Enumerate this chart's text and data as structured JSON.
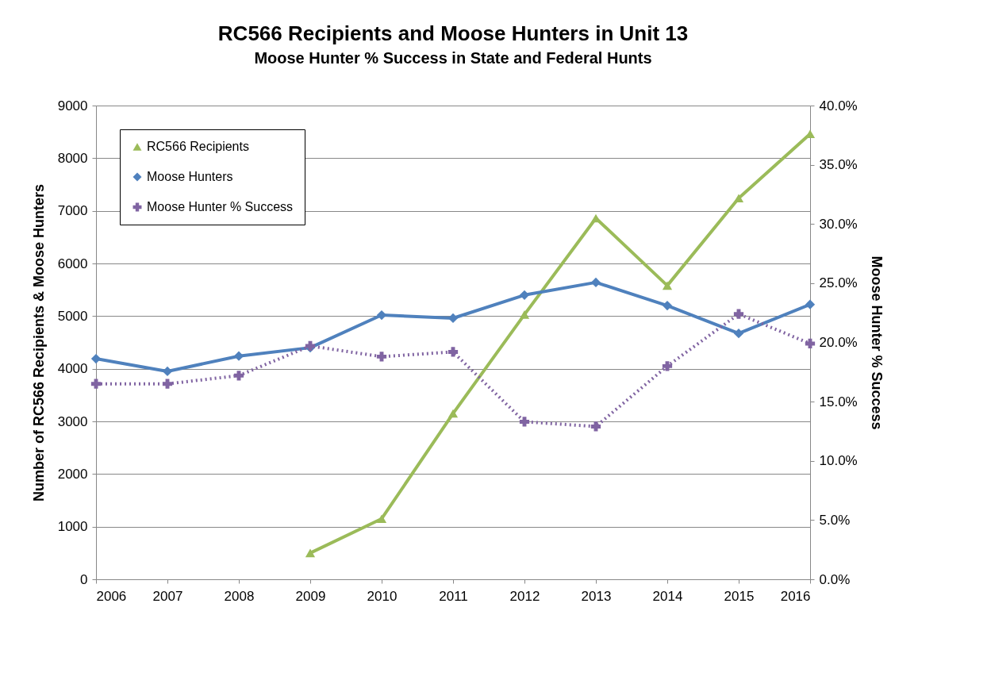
{
  "chart_data": {
    "type": "line",
    "title": "RC566 Recipients and Moose Hunters in Unit 13",
    "subtitle": "Moose Hunter % Success in State and Federal Hunts",
    "ylabel": "Number of RC566 Recipients & Moose Hunters",
    "y2label": "Moose Hunter % Success",
    "x": [
      2006,
      2007,
      2008,
      2009,
      2010,
      2011,
      2012,
      2013,
      2014,
      2015,
      2016
    ],
    "xlim": [
      2006,
      2016
    ],
    "xticks": [
      2006,
      2007,
      2008,
      2009,
      2010,
      2011,
      2012,
      2013,
      2014,
      2015,
      2016
    ],
    "ylim": [
      0,
      9000
    ],
    "yticks": [
      0,
      1000,
      2000,
      3000,
      4000,
      5000,
      6000,
      7000,
      8000,
      9000
    ],
    "y2lim": [
      0,
      40
    ],
    "y2ticks": [
      {
        "value": 0,
        "label": "0.0%"
      },
      {
        "value": 5,
        "label": "5.0%"
      },
      {
        "value": 10,
        "label": "10.0%"
      },
      {
        "value": 15,
        "label": "15.0%"
      },
      {
        "value": 20,
        "label": "20.0%"
      },
      {
        "value": 25,
        "label": "25.0%"
      },
      {
        "value": 30,
        "label": "30.0%"
      },
      {
        "value": 35,
        "label": "35.0%"
      },
      {
        "value": 40,
        "label": "40.0%"
      }
    ],
    "grid": "y",
    "legend": "top left",
    "series": [
      {
        "name": "RC566 Recipients",
        "color": "#9bbb59",
        "marker": "triangle",
        "line_style": "solid",
        "values": [
          null,
          null,
          null,
          500,
          1150,
          3150,
          5030,
          6860,
          5580,
          7240,
          8460
        ]
      },
      {
        "name": "Moose Hunters",
        "color": "#4f81bd",
        "marker": "diamond",
        "line_style": "solid",
        "values": [
          4190,
          3950,
          4240,
          4400,
          5020,
          4960,
          5400,
          5640,
          5200,
          4670,
          5220
        ]
      },
      {
        "name": "Moose Hunter % Success",
        "color": "#8064a2",
        "marker": "cross",
        "line_style": "dotted",
        "axis": "y2",
        "values": [
          16.5,
          16.5,
          17.2,
          19.7,
          18.8,
          19.2,
          13.3,
          12.9,
          18.0,
          22.4,
          19.9
        ]
      }
    ]
  }
}
